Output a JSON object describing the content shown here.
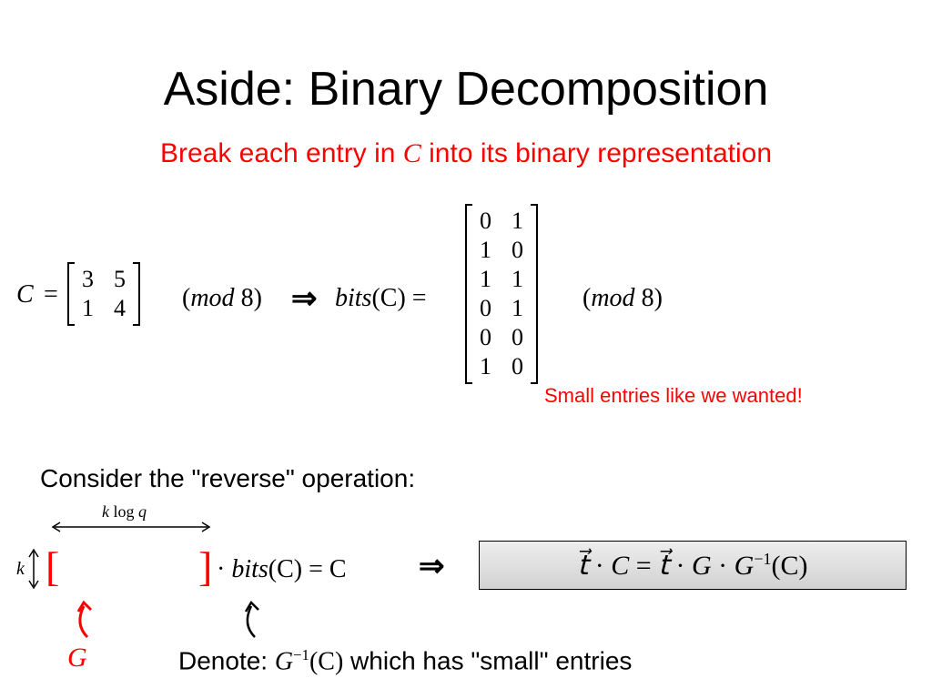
{
  "colors": {
    "accent": "#ff0000",
    "bg": "#ffffff",
    "text": "#000000",
    "box_grad_top": "#ededed",
    "box_grad_bot": "#d2d2d2",
    "box_border": "#000000"
  },
  "typography": {
    "title_fontsize": 52,
    "subtitle_fontsize": 30,
    "body_fontsize": 28,
    "note_fontsize": 22,
    "result_fontsize": 30,
    "family_sans": "Gill Sans",
    "family_math": "Cambria Math"
  },
  "title": "Aside: Binary Decomposition",
  "subtitle_pre": "Break each entry in ",
  "subtitle_C": "C",
  "subtitle_post": " into its binary representation",
  "row1": {
    "C": "C",
    "eq": "=",
    "matC": {
      "rows": 2,
      "cols": 2,
      "cells": [
        "3",
        "5",
        "1",
        "4"
      ],
      "row_gap": 2,
      "col_gap": 22,
      "cell_fontsize": 26
    },
    "mod1_pre": "(",
    "mod1_word": "mod",
    "mod1_num": " 8)",
    "arrow": "⇒",
    "bits_label": "bits",
    "bits_arg": "(C) =",
    "matBits": {
      "rows": 6,
      "cols": 2,
      "cells": [
        "0",
        "1",
        "1",
        "0",
        "1",
        "1",
        "0",
        "1",
        "0",
        "0",
        "1",
        "0"
      ],
      "row_gap": 2,
      "col_gap": 22,
      "cell_fontsize": 26
    },
    "mod2_pre": "(",
    "mod2_word": "mod",
    "mod2_num": " 8)",
    "note": "Small entries like we wanted!"
  },
  "consider": "Consider the \"reverse\" operation:",
  "diag": {
    "klogq_k": "k",
    "klogq_log": " log ",
    "klogq_q": "q",
    "k": "k",
    "bracket_left": "[",
    "bracket_right": "]",
    "rhs_dot": "· ",
    "rhs_bits": "bits",
    "rhs_arg": "(C) = C",
    "arrow": "⇒",
    "G": "G",
    "harrow_width": 180,
    "varrow_height": 50,
    "curve_color": "#000000",
    "curve_red": "#ff0000"
  },
  "result": {
    "t1": "t⃗ ",
    "dot1": " · ",
    "C": "C",
    "eq": " = ",
    "t2": "t⃗ ",
    "dot2": " · ",
    "G": "G",
    "dot3": " · ",
    "G2": "G",
    "inv": "−1",
    "arg": "(C)"
  },
  "denote": {
    "pre": "Denote: ",
    "G": "G",
    "inv": "−1",
    "arg": "(C)",
    "post": " which has \"small\" entries"
  }
}
